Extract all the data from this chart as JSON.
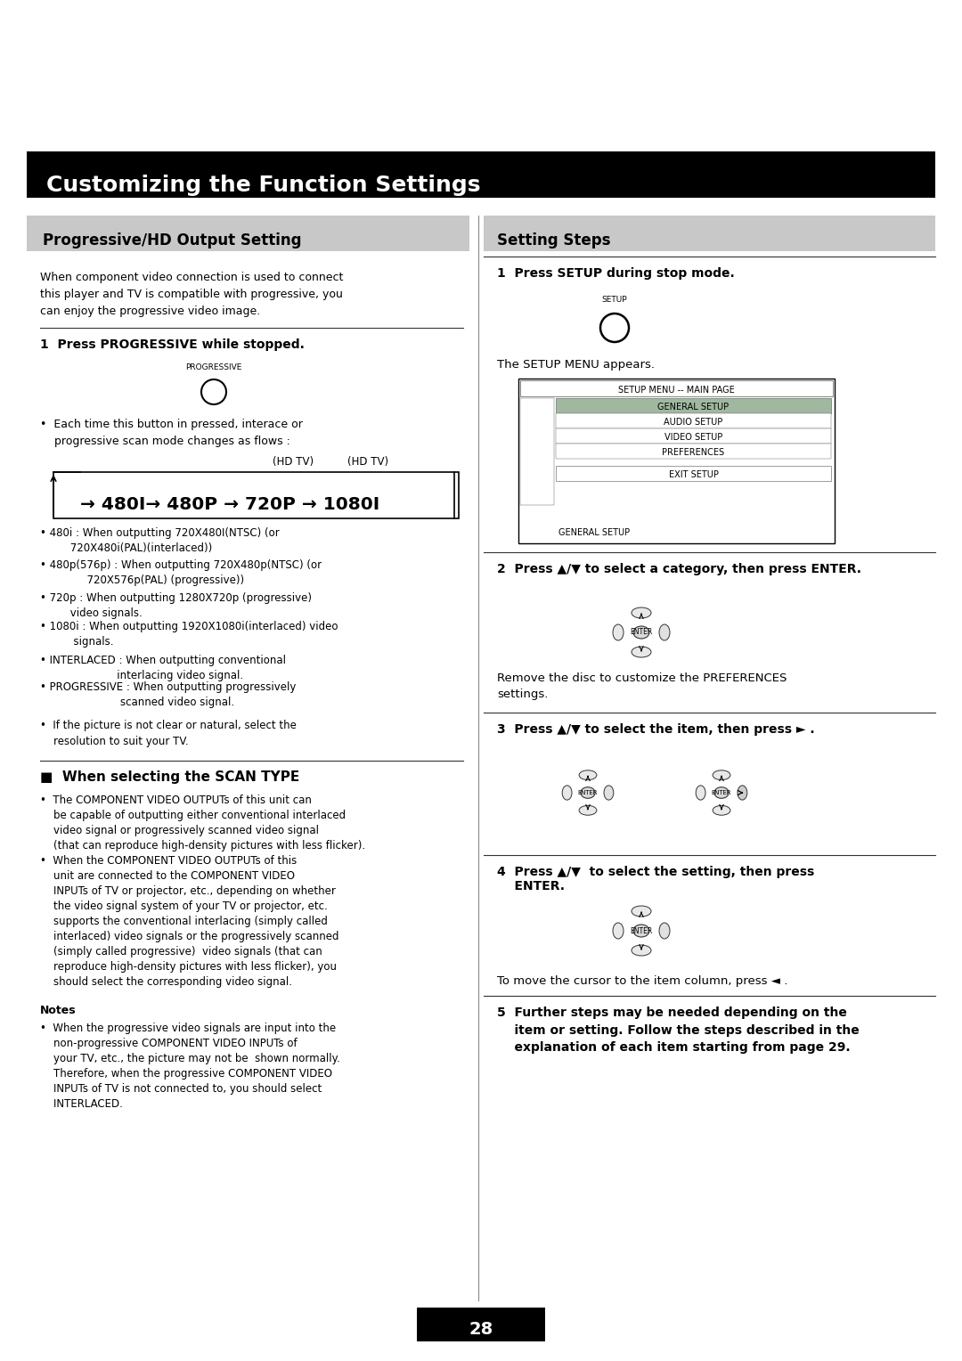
{
  "bg_color": "#ffffff",
  "main_title": "Customizing the Function Settings",
  "main_title_bg": "#000000",
  "main_title_color": "#ffffff",
  "left_section_title": "Progressive/HD Output Setting",
  "right_section_title": "Setting Steps",
  "section_title_bg": "#c8c8c8",
  "page_number": "28",
  "left_intro": "When component video connection is used to connect\nthis player and TV is compatible with progressive, you\ncan enjoy the progressive video image.",
  "step1_left_bold": "1  Press PROGRESSIVE while stopped.",
  "step1_left_bullet": "Each time this button in pressed, interace or\n    progressive scan mode changes as flows :",
  "hd_tv_label1": "(HD TV)",
  "hd_tv_label2": "(HD TV)",
  "flow_text": "→ 480I→ 480P → 720P → 1080I",
  "bullet_480i": "480i : When outputting 720X480I(NTSC) (or\n         720X480i(PAL)(interlaced))",
  "bullet_480p": "480p(576p) : When outputting 720X480p(NTSC) (or\n              720X576p(PAL) (progressive))",
  "bullet_720p": "720p : When outputting 1280X720p (progressive)\n         video signals.",
  "bullet_1080i": "1080i : When outputting 1920X1080i(interlaced) video\n          signals.",
  "bullet_interlaced": "INTERLACED : When outputting conventional\n                       interlacing video signal.",
  "bullet_progressive_text": "PROGRESSIVE : When outputting progressively\n                        scanned video signal.",
  "bullet_picture": "If the picture is not clear or natural, select the\n    resolution to suit your TV.",
  "scan_type_title": "■  When selecting the SCAN TYPE",
  "scan_bullet1": "The COMPONENT VIDEO OUTPUTs of this unit can\n    be capable of outputting either conventional interlaced\n    video signal or progressively scanned video signal\n    (that can reproduce high-density pictures with less flicker).",
  "scan_bullet2": "When the COMPONENT VIDEO OUTPUTs of this\n    unit are connected to the COMPONENT VIDEO\n    INPUTs of TV or projector, etc., depending on whether\n    the video signal system of your TV or projector, etc.\n    supports the conventional interlacing (simply called\n    interlaced) video signals or the progressively scanned\n    (simply called progressive)  video signals (that can\n    reproduce high-density pictures with less flicker), you\n    should select the corresponding video signal.",
  "notes_title": "Notes",
  "notes_bullet": "When the progressive video signals are input into the\n    non-progressive COMPONENT VIDEO INPUTs of\n    your TV, etc., the picture may not be  shown normally.\n    Therefore, when the progressive COMPONENT VIDEO\n    INPUTs of TV is not connected to, you should select\n    INTERLACED.",
  "right_step1_bold": "1  Press SETUP during stop mode.",
  "right_step1_sub": "The SETUP MENU appears.",
  "right_step2_bold": "2  Press ▲/▼ to select a category, then press ENTER.",
  "right_step2_sub": "Remove the disc to customize the PREFERENCES\nsettings.",
  "right_step3_bold": "3  Press ▲/▼ to select the item, then press ► .",
  "right_step4_bold": "4  Press ▲/▼  to select the setting, then press\n    ENTER.",
  "right_step4_sub": "To move the cursor to the item column, press ◄ .",
  "right_step5_bold": "5  Further steps may be needed depending on the\n    item or setting. Follow the steps described in the\n    explanation of each item starting from page 29."
}
